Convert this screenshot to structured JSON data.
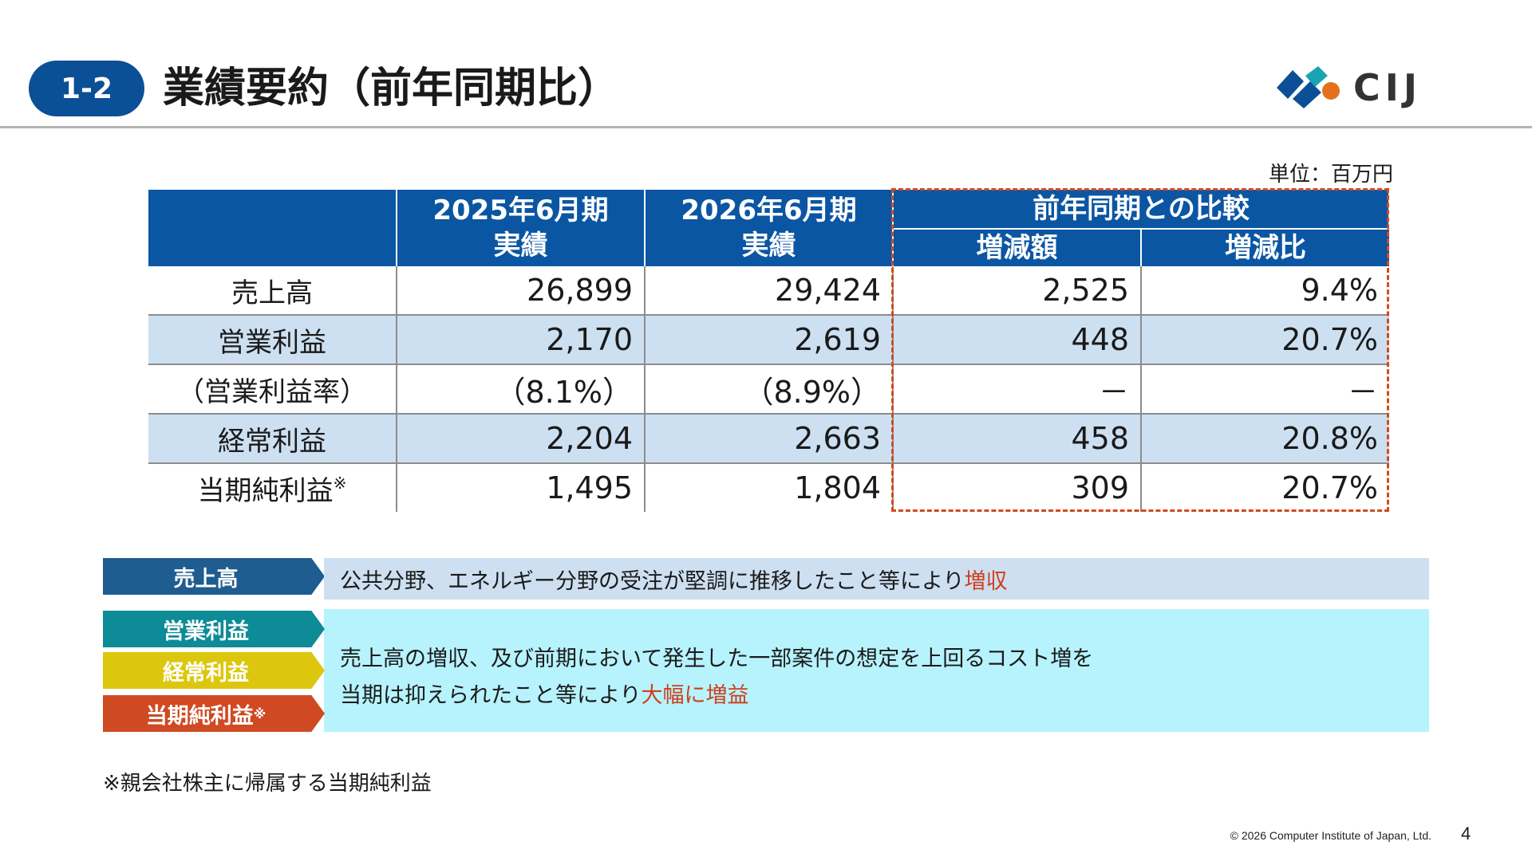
{
  "header": {
    "section_number": "1-2",
    "title": "業績要約（前年同期比）",
    "logo_text": "CIJ",
    "logo_colors": {
      "blue": "#0b4f97",
      "teal": "#1aa3b3",
      "orange": "#e4701e"
    }
  },
  "unit_label": "単位：百万円",
  "table": {
    "columns": {
      "fy2025": [
        "2025年6月期",
        "実績"
      ],
      "fy2026": [
        "2026年6月期",
        "実績"
      ],
      "comparison_group": "前年同期との比較",
      "change_amount": "増減額",
      "change_ratio": "増減比"
    },
    "rows": [
      {
        "label": "売上高",
        "note": "",
        "fy2025": "26,899",
        "fy2026": "29,424",
        "change": "2,525",
        "ratio": "9.4%"
      },
      {
        "label": "営業利益",
        "note": "",
        "fy2025": "2,170",
        "fy2026": "2,619",
        "change": "448",
        "ratio": "20.7%"
      },
      {
        "label": "（営業利益率）",
        "note": "",
        "fy2025": "（8.1%）",
        "fy2026": "（8.9%）",
        "change": "－",
        "ratio": "－"
      },
      {
        "label": "経常利益",
        "note": "",
        "fy2025": "2,204",
        "fy2026": "2,663",
        "change": "458",
        "ratio": "20.8%"
      },
      {
        "label": "当期純利益",
        "note": "※",
        "fy2025": "1,495",
        "fy2026": "1,804",
        "change": "309",
        "ratio": "20.7%"
      }
    ]
  },
  "commentary": {
    "tags": {
      "sales": "売上高",
      "operating": "営業利益",
      "ordinary": "経常利益",
      "net": "当期純利益",
      "net_note": "※"
    },
    "sales_text": "公共分野、エネルギー分野の受注が堅調に推移したこと等により",
    "sales_highlight": "増収",
    "profit_line1": "売上高の増収、及び前期において発生した一部案件の想定を上回るコスト増を",
    "profit_line2": "当期は抑えられたこと等により",
    "profit_highlight": "大幅に増益"
  },
  "footnote": "※親会社株主に帰属する当期純利益",
  "copyright": "© 2026 Computer Institute of Japan, Ltd.",
  "page_number": "4"
}
